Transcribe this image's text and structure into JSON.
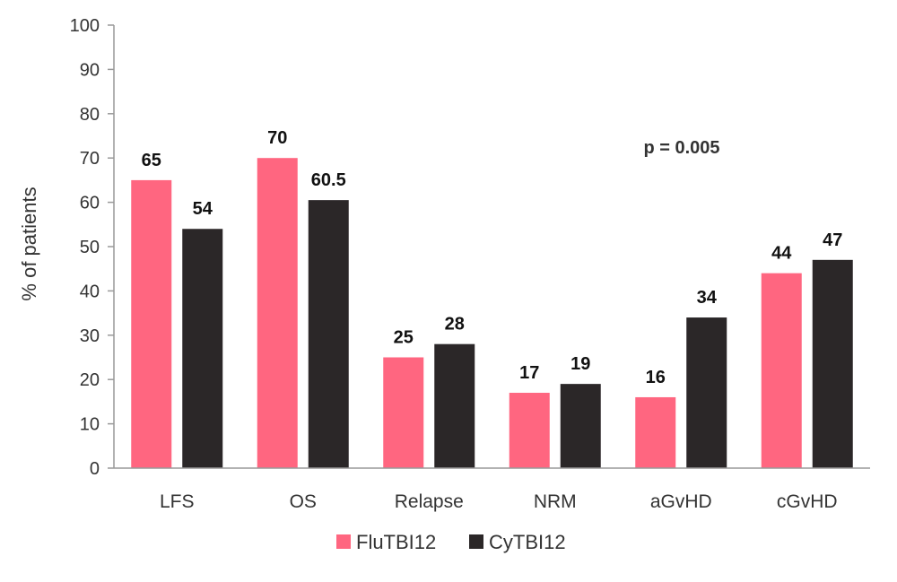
{
  "chart_data": {
    "type": "bar",
    "categories": [
      "LFS",
      "OS",
      "Relapse",
      "NRM",
      "aGvHD",
      "cGvHD"
    ],
    "series": [
      {
        "name": "FluTBI12",
        "color": "#ff6680",
        "values": [
          65,
          70,
          25,
          17,
          16,
          44
        ]
      },
      {
        "name": "CyTBI12",
        "color": "#2b2728",
        "values": [
          54,
          60.5,
          28,
          19,
          34,
          47
        ]
      }
    ],
    "data_labels": [
      [
        "65",
        "70",
        "25",
        "17",
        "16",
        "44"
      ],
      [
        "54",
        "60.5",
        "28",
        "19",
        "34",
        "47"
      ]
    ],
    "ylabel": "% of patients",
    "xlabel": "",
    "ylim": [
      0,
      100
    ],
    "yticks": [
      0,
      10,
      20,
      30,
      40,
      50,
      60,
      70,
      80,
      90,
      100
    ],
    "annotation": "p = 0.005",
    "legend_position": "bottom-center",
    "grid": false
  }
}
